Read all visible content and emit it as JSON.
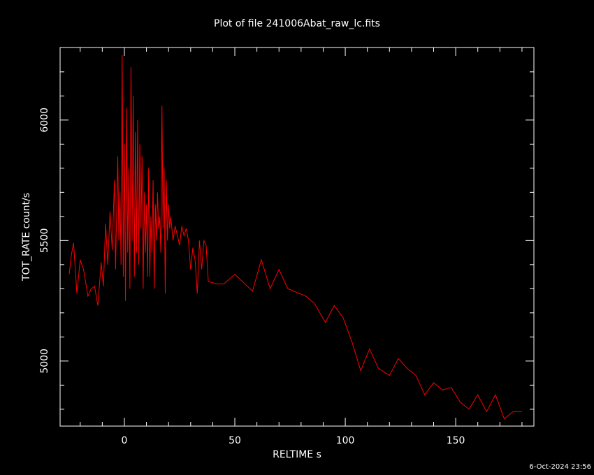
{
  "chart_data": {
    "type": "line",
    "title": "Plot of file 241006Abat_raw_lc.fits",
    "x_label": "RELTIME  s",
    "y_label": "TOT_RATE  count/s",
    "timestamp": "6-Oct-2024 23:56",
    "xlim": [
      -29.1,
      185.4
    ],
    "ylim": [
      4730,
      6301
    ],
    "xticks": [
      0,
      50,
      100,
      150
    ],
    "yticks": [
      5000,
      5500,
      6000
    ],
    "xticks_minor": [
      -20,
      -10,
      10,
      20,
      30,
      40,
      60,
      70,
      80,
      90,
      110,
      120,
      130,
      140,
      160,
      170,
      180
    ],
    "yticks_minor": [
      4800,
      4900,
      5100,
      5200,
      5300,
      5400,
      5600,
      5700,
      5800,
      5900,
      6100,
      6200
    ],
    "x": [
      -25,
      -24,
      -23,
      -21.5,
      -20,
      -18.5,
      -16.5,
      -15,
      -13.5,
      -12,
      -10.5,
      -9.5,
      -8.5,
      -7.5,
      -6.5,
      -5.5,
      -4.5,
      -4,
      -3,
      -2.5,
      -2,
      -1.5,
      -1,
      -0.5,
      0,
      0.5,
      1,
      1.5,
      2,
      2.5,
      3,
      3.5,
      4,
      4.5,
      5,
      5.5,
      6,
      6.5,
      7,
      7.5,
      8,
      8.5,
      9,
      9.5,
      10,
      10.5,
      11,
      11.5,
      12,
      12.5,
      13,
      13.5,
      14,
      14.5,
      15,
      15.5,
      16,
      16.5,
      17,
      17.5,
      18,
      18.5,
      19,
      19.5,
      20,
      20.5,
      21,
      22,
      23,
      24,
      25,
      26,
      27,
      28,
      29,
      30,
      31,
      32,
      33,
      34,
      35,
      36,
      37,
      38,
      42,
      45,
      50,
      58,
      62,
      66,
      70,
      74,
      82,
      86,
      91,
      95,
      99,
      103,
      107,
      111,
      115,
      120,
      124,
      128,
      132,
      136,
      140,
      144,
      148,
      152,
      156,
      160,
      164,
      168,
      172,
      176,
      180
    ],
    "series": [
      {
        "name": "TOT_RATE",
        "color": "#ff0000",
        "values": [
          5360,
          5440,
          5490,
          5280,
          5420,
          5380,
          5270,
          5300,
          5310,
          5230,
          5410,
          5310,
          5570,
          5400,
          5620,
          5460,
          5750,
          5380,
          5850,
          5500,
          5700,
          5400,
          6270,
          5350,
          5900,
          5250,
          6050,
          5450,
          5800,
          5300,
          6220,
          5500,
          6100,
          5350,
          5950,
          5450,
          6000,
          5400,
          5900,
          5550,
          5850,
          5300,
          5700,
          5450,
          5650,
          5350,
          5800,
          5350,
          5600,
          5450,
          5750,
          5300,
          5650,
          5500,
          5700,
          5550,
          5600,
          5450,
          6060,
          5550,
          5800,
          5280,
          5750,
          5500,
          5650,
          5550,
          5600,
          5500,
          5560,
          5520,
          5480,
          5560,
          5520,
          5550,
          5500,
          5380,
          5470,
          5420,
          5280,
          5500,
          5380,
          5500,
          5480,
          5330,
          5320,
          5320,
          5360,
          5290,
          5420,
          5300,
          5380,
          5300,
          5270,
          5240,
          5160,
          5230,
          5180,
          5080,
          4960,
          5050,
          4970,
          4940,
          5010,
          4970,
          4940,
          4860,
          4910,
          4880,
          4890,
          4830,
          4800,
          4860,
          4790,
          4860,
          4760,
          4790,
          4790
        ]
      }
    ]
  }
}
